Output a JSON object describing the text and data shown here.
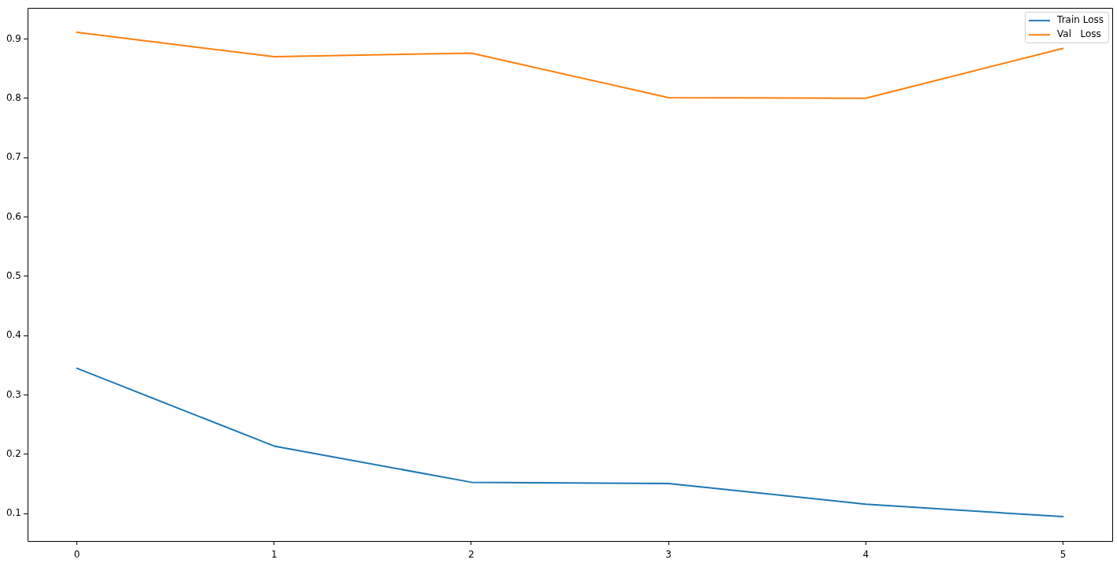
{
  "chart_data": {
    "type": "line",
    "x": [
      0,
      1,
      2,
      3,
      4,
      5
    ],
    "xlim": [
      -0.25,
      5.25
    ],
    "xticks": [
      0,
      1,
      2,
      3,
      4,
      5
    ],
    "ylim": [
      0.054,
      0.952
    ],
    "yticks": [
      0.1,
      0.2,
      0.3,
      0.4,
      0.5,
      0.6,
      0.7,
      0.8,
      0.9
    ],
    "legend": "top right",
    "series": [
      {
        "name": "Train Loss",
        "color": "#1f77b4",
        "values": [
          0.345,
          0.214,
          0.153,
          0.151,
          0.116,
          0.095
        ]
      },
      {
        "name": "Val   Loss",
        "color": "#ff7f0e",
        "values": [
          0.911,
          0.87,
          0.876,
          0.801,
          0.8,
          0.884
        ]
      }
    ]
  }
}
